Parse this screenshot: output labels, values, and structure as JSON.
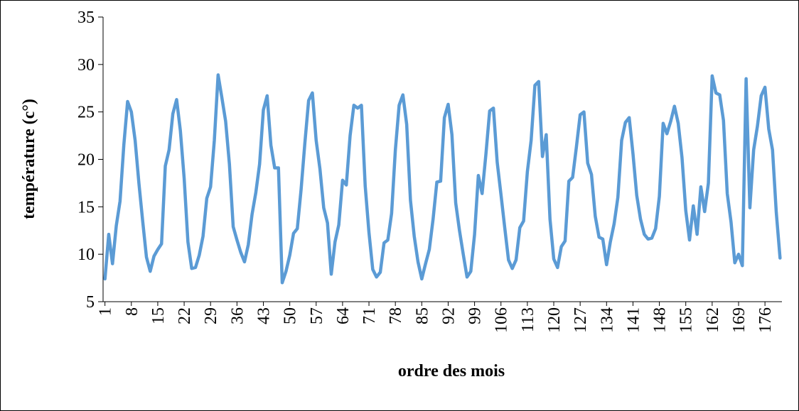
{
  "chart_data": {
    "type": "line",
    "x_label": "ordre des mois",
    "y_label": "température (c°)",
    "color": "#5b9bd5",
    "grid": false,
    "ylim": [
      5,
      35
    ],
    "yticks": [
      5,
      10,
      15,
      20,
      25,
      30,
      35
    ],
    "categories": [
      "1",
      null,
      null,
      null,
      null,
      null,
      null,
      "8",
      null,
      null,
      null,
      null,
      null,
      null,
      "15",
      null,
      null,
      null,
      null,
      null,
      null,
      "22",
      null,
      null,
      null,
      null,
      null,
      null,
      "29",
      null,
      null,
      null,
      null,
      null,
      null,
      "36",
      null,
      null,
      null,
      null,
      null,
      null,
      "43",
      null,
      null,
      null,
      null,
      null,
      null,
      "50",
      null,
      null,
      null,
      null,
      null,
      null,
      "57",
      null,
      null,
      null,
      null,
      null,
      null,
      "64",
      null,
      null,
      null,
      null,
      null,
      null,
      "71",
      null,
      null,
      null,
      null,
      null,
      null,
      "78",
      null,
      null,
      null,
      null,
      null,
      null,
      "85",
      null,
      null,
      null,
      null,
      null,
      null,
      "92",
      null,
      null,
      null,
      null,
      null,
      null,
      "99",
      null,
      null,
      null,
      null,
      null,
      null,
      "106",
      null,
      null,
      null,
      null,
      null,
      null,
      "113",
      null,
      null,
      null,
      null,
      null,
      null,
      "120",
      null,
      null,
      null,
      null,
      null,
      null,
      "127",
      null,
      null,
      null,
      null,
      null,
      null,
      "134",
      null,
      null,
      null,
      null,
      null,
      null,
      "141",
      null,
      null,
      null,
      null,
      null,
      null,
      "148",
      null,
      null,
      null,
      null,
      null,
      null,
      "155",
      null,
      null,
      null,
      null,
      null,
      null,
      "162",
      null,
      null,
      null,
      null,
      null,
      null,
      "169",
      null,
      null,
      null,
      null,
      null,
      null,
      "176",
      null,
      null,
      null,
      null
    ],
    "values": [
      7.4,
      12.1,
      9,
      13,
      15.6,
      21.5,
      26.1,
      25,
      22,
      17.5,
      13.5,
      9.7,
      8.2,
      9.8,
      10.5,
      11.1,
      19.3,
      21,
      24.8,
      26.3,
      23,
      18,
      11.3,
      8.5,
      8.6,
      9.9,
      11.9,
      15.9,
      17.1,
      22,
      28.9,
      26.5,
      24,
      19.5,
      12.9,
      11.5,
      10.2,
      9.2,
      11,
      14.2,
      16.5,
      19.5,
      25.2,
      26.7,
      21.5,
      19.1,
      19.1,
      7,
      8.2,
      9.9,
      12.2,
      12.7,
      16.8,
      21.7,
      26.2,
      27,
      22,
      19,
      14.9,
      13.3,
      7.9,
      11.3,
      13.1,
      17.8,
      17.3,
      22.5,
      25.7,
      25.4,
      25.7,
      17.2,
      12.3,
      8.4,
      7.6,
      8.1,
      11.2,
      11.5,
      14.3,
      21,
      25.7,
      26.8,
      23.7,
      15.7,
      11.9,
      9.2,
      7.4,
      9,
      10.5,
      13.7,
      17.6,
      17.7,
      24.4,
      25.8,
      22.6,
      15.4,
      12.5,
      10,
      7.6,
      8.2,
      12.1,
      18.3,
      16.4,
      20.5,
      25.1,
      25.4,
      19.7,
      16.3,
      12.8,
      9.4,
      8.5,
      9.4,
      12.8,
      13.5,
      18.7,
      22,
      27.8,
      28.2,
      20.3,
      22.6,
      13.7,
      9.5,
      8.6,
      10.8,
      11.4,
      17.7,
      18.1,
      21.3,
      24.7,
      25,
      19.6,
      18.4,
      14,
      11.8,
      11.6,
      8.9,
      11.3,
      13.2,
      16,
      22,
      23.9,
      24.4,
      20.6,
      16.2,
      13.7,
      12.1,
      11.6,
      11.7,
      12.7,
      16.1,
      23.8,
      22.7,
      24,
      25.6,
      23.8,
      20.2,
      14.6,
      11.5,
      15.1,
      12.1,
      17.1,
      14.5,
      17.5,
      28.8,
      27,
      26.8,
      24.1,
      16.4,
      13.4,
      9.1,
      10,
      8.8,
      28.5,
      14.9,
      21,
      23.5,
      26.7,
      27.6,
      23.2,
      21,
      14.4,
      9.6
    ]
  }
}
